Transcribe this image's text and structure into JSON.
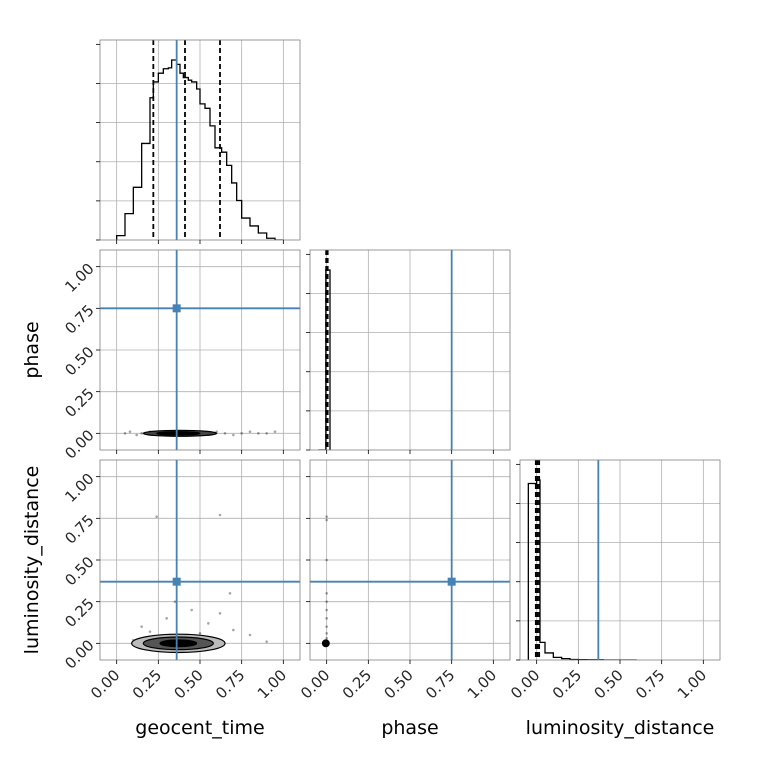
{
  "chart_data": {
    "type": "corner",
    "parameters": [
      "geocent_time",
      "phase",
      "luminosity_distance"
    ],
    "axis_range": [
      -0.1,
      1.1
    ],
    "tick_values": [
      0.0,
      0.25,
      0.5,
      0.75,
      1.0
    ],
    "tick_labels": [
      "0.00",
      "0.25",
      "0.50",
      "0.75",
      "1.00"
    ],
    "x_labels": [
      "geocent_time",
      "phase",
      "luminosity_distance"
    ],
    "y_labels": [
      "",
      "phase",
      "luminosity_distance"
    ],
    "truths": {
      "geocent_time": 0.36,
      "phase": 0.75,
      "luminosity_distance": 0.37
    },
    "colors": {
      "truth": "#4682b4",
      "hist": "#000000",
      "grid": "#b0b0b0",
      "points": "#000000"
    },
    "grid": true,
    "panels": [
      {
        "id": "hist-geocent_time",
        "type": "histogram",
        "parameter": "geocent_time",
        "bin_edges": [
          0.0,
          0.05,
          0.1,
          0.15,
          0.2,
          0.22,
          0.25,
          0.28,
          0.31,
          0.33,
          0.36,
          0.38,
          0.4,
          0.43,
          0.45,
          0.48,
          0.5,
          0.53,
          0.56,
          0.59,
          0.63,
          0.66,
          0.69,
          0.72,
          0.75,
          0.8,
          0.85,
          0.9,
          0.95,
          1.0
        ],
        "counts": [
          0.05,
          0.3,
          0.6,
          1.1,
          1.62,
          1.8,
          1.9,
          1.95,
          1.96,
          2.05,
          2.0,
          1.9,
          1.85,
          1.82,
          1.8,
          1.72,
          1.55,
          1.5,
          1.3,
          1.05,
          1.0,
          0.85,
          0.65,
          0.45,
          0.25,
          0.16,
          0.08,
          0.02,
          0.0
        ],
        "quantiles": [
          0.22,
          0.41,
          0.62
        ]
      },
      {
        "id": "hist-phase",
        "type": "histogram",
        "parameter": "phase",
        "bin_edges": [
          -0.05,
          -0.005,
          0.005,
          0.02
        ],
        "counts": [
          0.0,
          1.0,
          1.0
        ],
        "quantiles": [
          -0.003,
          0.0,
          0.006
        ]
      },
      {
        "id": "hist-luminosity_distance",
        "type": "histogram",
        "parameter": "luminosity_distance",
        "bin_edges": [
          -0.05,
          0.0,
          0.02,
          0.05,
          0.1,
          0.15,
          0.2,
          0.25,
          0.3,
          0.4,
          0.6
        ],
        "counts": [
          1.0,
          1.02,
          0.1,
          0.04,
          0.015,
          0.008,
          0.003,
          0.002,
          0.001,
          0.0
        ],
        "quantiles": [
          -0.005,
          0.005,
          0.015
        ]
      },
      {
        "id": "scatter-geocent_time-phase",
        "type": "2d-density",
        "x": "geocent_time",
        "y": "phase",
        "points": [
          [
            0.05,
            0.0
          ],
          [
            0.08,
            0.01
          ],
          [
            0.12,
            -0.01
          ],
          [
            0.15,
            0.0
          ],
          [
            0.2,
            0.01
          ],
          [
            0.25,
            0.0
          ],
          [
            0.3,
            -0.01
          ],
          [
            0.35,
            0.0
          ],
          [
            0.4,
            0.01
          ],
          [
            0.45,
            0.0
          ],
          [
            0.5,
            -0.01
          ],
          [
            0.55,
            0.0
          ],
          [
            0.6,
            0.01
          ],
          [
            0.65,
            0.0
          ],
          [
            0.7,
            -0.01
          ],
          [
            0.75,
            0.0
          ],
          [
            0.8,
            0.01
          ],
          [
            0.85,
            0.0
          ],
          [
            0.9,
            0.0
          ],
          [
            0.95,
            0.01
          ]
        ],
        "contours": [
          {
            "cx": 0.38,
            "cy": 0.0,
            "rx": 0.22,
            "ry": 0.018,
            "fill": "#444444"
          },
          {
            "cx": 0.37,
            "cy": 0.0,
            "rx": 0.13,
            "ry": 0.01,
            "fill": "#000000"
          }
        ]
      },
      {
        "id": "scatter-geocent_time-luminosity_distance",
        "type": "2d-density",
        "x": "geocent_time",
        "y": "luminosity_distance",
        "points": [
          [
            0.24,
            0.76
          ],
          [
            0.62,
            0.77
          ],
          [
            0.15,
            0.1
          ],
          [
            0.55,
            0.12
          ],
          [
            0.7,
            0.08
          ],
          [
            0.3,
            0.15
          ],
          [
            0.45,
            0.2
          ],
          [
            0.8,
            0.05
          ],
          [
            0.62,
            0.18
          ],
          [
            0.1,
            0.02
          ],
          [
            0.9,
            0.01
          ],
          [
            0.5,
            0.06
          ],
          [
            0.35,
            0.25
          ],
          [
            0.68,
            0.3
          ],
          [
            0.2,
            0.07
          ]
        ],
        "contours": [
          {
            "cx": 0.37,
            "cy": 0.0,
            "rx": 0.28,
            "ry": 0.055,
            "fill": "#bbbbbb"
          },
          {
            "cx": 0.37,
            "cy": 0.0,
            "rx": 0.21,
            "ry": 0.038,
            "fill": "#555555"
          },
          {
            "cx": 0.37,
            "cy": 0.0,
            "rx": 0.11,
            "ry": 0.02,
            "fill": "#000000"
          }
        ]
      },
      {
        "id": "scatter-phase-luminosity_distance",
        "type": "2d-density",
        "x": "phase",
        "y": "luminosity_distance",
        "points": [
          [
            0.0,
            0.76
          ],
          [
            0.0,
            0.74
          ],
          [
            0.0,
            0.5
          ],
          [
            0.0,
            0.3
          ],
          [
            0.0,
            0.25
          ],
          [
            0.0,
            0.2
          ],
          [
            0.0,
            0.15
          ],
          [
            0.0,
            0.1
          ],
          [
            0.0,
            0.06
          ],
          [
            0.0,
            0.03
          ]
        ],
        "contours": [
          {
            "cx": -0.005,
            "cy": 0.0,
            "rx": 0.02,
            "ry": 0.02,
            "fill": "#000000"
          }
        ]
      }
    ]
  }
}
